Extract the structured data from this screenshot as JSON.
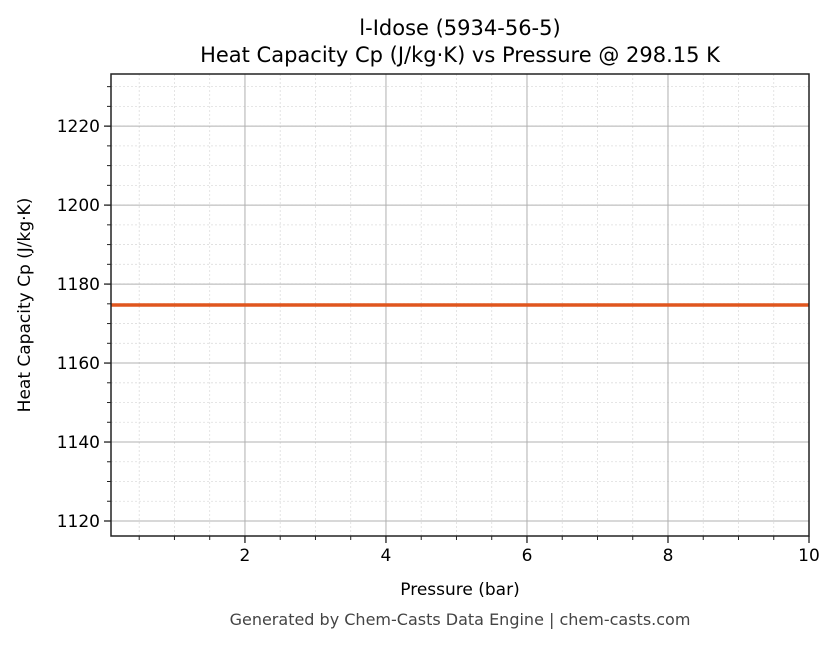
{
  "chart_data": {
    "type": "line",
    "title": "l-Idose (5934-56-5)",
    "subtitle": "Heat Capacity Cp (J/kg·K) vs Pressure @ 298.15 K",
    "xlabel": "Pressure (bar)",
    "ylabel": "Heat Capacity Cp (J/kg·K)",
    "xlim": [
      0.1,
      10
    ],
    "ylim": [
      1116.2,
      1233.2
    ],
    "xticks": [
      2,
      4,
      6,
      8,
      10
    ],
    "xtick_labels": [
      "2",
      "4",
      "6",
      "8",
      "10"
    ],
    "yticks": [
      1120,
      1140,
      1160,
      1180,
      1200,
      1220
    ],
    "ytick_labels": [
      "1120",
      "1140",
      "1160",
      "1180",
      "1200",
      "1220"
    ],
    "x_minor_step": 0.5,
    "y_minor_step": 5,
    "grid": true,
    "series": [
      {
        "x": [
          0.1,
          10
        ],
        "y": [
          1174.7,
          1174.7
        ],
        "color": "#e0561e"
      }
    ]
  },
  "footer": "Generated by Chem-Casts Data Engine | chem-casts.com"
}
